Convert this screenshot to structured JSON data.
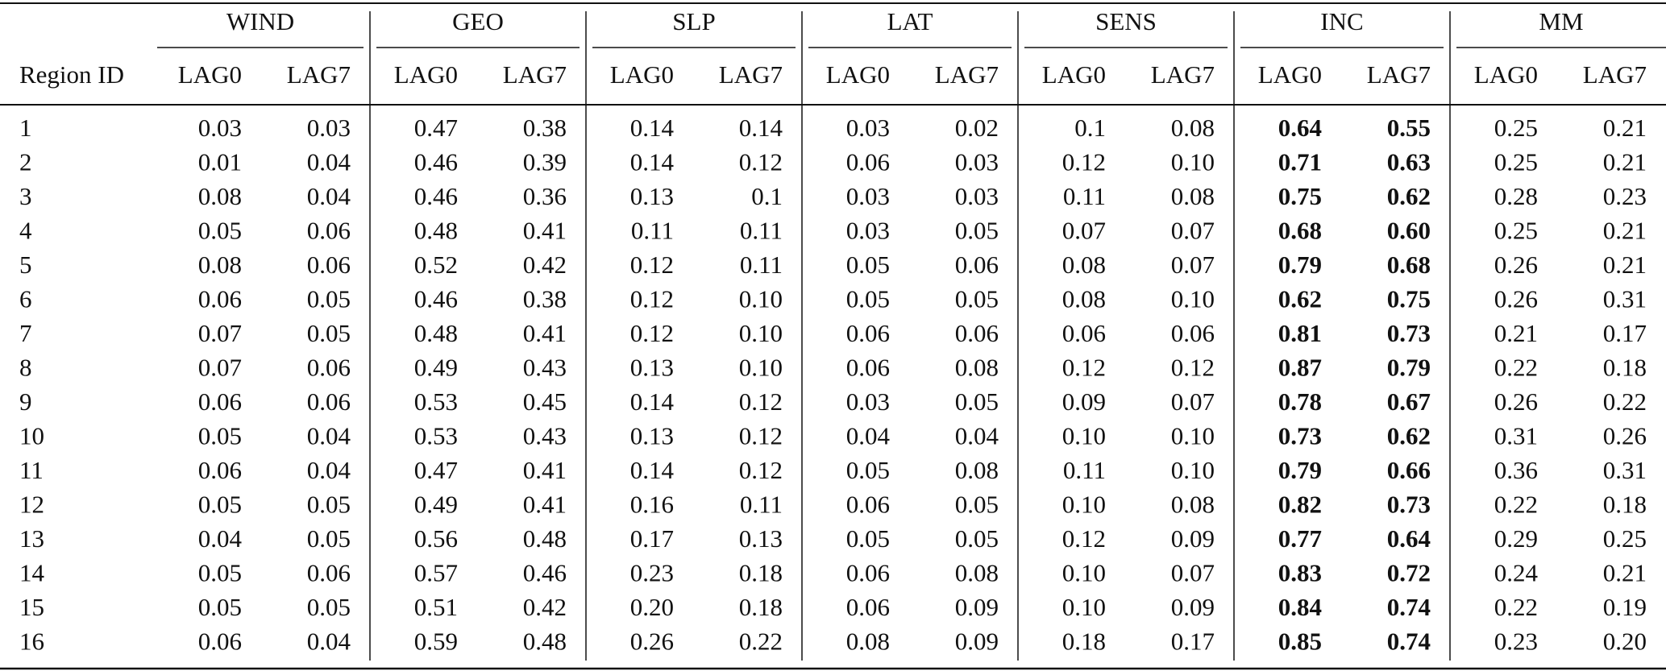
{
  "table": {
    "groups": [
      "WIND",
      "GEO",
      "SLP",
      "LAT",
      "SENS",
      "INC",
      "MM"
    ],
    "row_header": "Region ID",
    "subheaders": [
      "LAG0",
      "LAG7"
    ],
    "rows": [
      [
        "1",
        "0.03",
        "0.03",
        "0.47",
        "0.38",
        "0.14",
        "0.14",
        "0.03",
        "0.02",
        "0.1",
        "0.08",
        "0.64",
        "0.55",
        "0.25",
        "0.21"
      ],
      [
        "2",
        "0.01",
        "0.04",
        "0.46",
        "0.39",
        "0.14",
        "0.12",
        "0.06",
        "0.03",
        "0.12",
        "0.10",
        "0.71",
        "0.63",
        "0.25",
        "0.21"
      ],
      [
        "3",
        "0.08",
        "0.04",
        "0.46",
        "0.36",
        "0.13",
        "0.1",
        "0.03",
        "0.03",
        "0.11",
        "0.08",
        "0.75",
        "0.62",
        "0.28",
        "0.23"
      ],
      [
        "4",
        "0.05",
        "0.06",
        "0.48",
        "0.41",
        "0.11",
        "0.11",
        "0.03",
        "0.05",
        "0.07",
        "0.07",
        "0.68",
        "0.60",
        "0.25",
        "0.21"
      ],
      [
        "5",
        "0.08",
        "0.06",
        "0.52",
        "0.42",
        "0.12",
        "0.11",
        "0.05",
        "0.06",
        "0.08",
        "0.07",
        "0.79",
        "0.68",
        "0.26",
        "0.21"
      ],
      [
        "6",
        "0.06",
        "0.05",
        "0.46",
        "0.38",
        "0.12",
        "0.10",
        "0.05",
        "0.05",
        "0.08",
        "0.10",
        "0.62",
        "0.75",
        "0.26",
        "0.31"
      ],
      [
        "7",
        "0.07",
        "0.05",
        "0.48",
        "0.41",
        "0.12",
        "0.10",
        "0.06",
        "0.06",
        "0.06",
        "0.06",
        "0.81",
        "0.73",
        "0.21",
        "0.17"
      ],
      [
        "8",
        "0.07",
        "0.06",
        "0.49",
        "0.43",
        "0.13",
        "0.10",
        "0.06",
        "0.08",
        "0.12",
        "0.12",
        "0.87",
        "0.79",
        "0.22",
        "0.18"
      ],
      [
        "9",
        "0.06",
        "0.06",
        "0.53",
        "0.45",
        "0.14",
        "0.12",
        "0.03",
        "0.05",
        "0.09",
        "0.07",
        "0.78",
        "0.67",
        "0.26",
        "0.22"
      ],
      [
        "10",
        "0.05",
        "0.04",
        "0.53",
        "0.43",
        "0.13",
        "0.12",
        "0.04",
        "0.04",
        "0.10",
        "0.10",
        "0.73",
        "0.62",
        "0.31",
        "0.26"
      ],
      [
        "11",
        "0.06",
        "0.04",
        "0.47",
        "0.41",
        "0.14",
        "0.12",
        "0.05",
        "0.08",
        "0.11",
        "0.10",
        "0.79",
        "0.66",
        "0.36",
        "0.31"
      ],
      [
        "12",
        "0.05",
        "0.05",
        "0.49",
        "0.41",
        "0.16",
        "0.11",
        "0.06",
        "0.05",
        "0.10",
        "0.08",
        "0.82",
        "0.73",
        "0.22",
        "0.18"
      ],
      [
        "13",
        "0.04",
        "0.05",
        "0.56",
        "0.48",
        "0.17",
        "0.13",
        "0.05",
        "0.05",
        "0.12",
        "0.09",
        "0.77",
        "0.64",
        "0.29",
        "0.25"
      ],
      [
        "14",
        "0.05",
        "0.06",
        "0.57",
        "0.46",
        "0.23",
        "0.18",
        "0.06",
        "0.08",
        "0.10",
        "0.07",
        "0.83",
        "0.72",
        "0.24",
        "0.21"
      ],
      [
        "15",
        "0.05",
        "0.05",
        "0.51",
        "0.42",
        "0.20",
        "0.18",
        "0.06",
        "0.09",
        "0.10",
        "0.09",
        "0.84",
        "0.74",
        "0.22",
        "0.19"
      ],
      [
        "16",
        "0.06",
        "0.04",
        "0.59",
        "0.48",
        "0.26",
        "0.22",
        "0.08",
        "0.09",
        "0.18",
        "0.17",
        "0.85",
        "0.74",
        "0.23",
        "0.20"
      ]
    ]
  }
}
